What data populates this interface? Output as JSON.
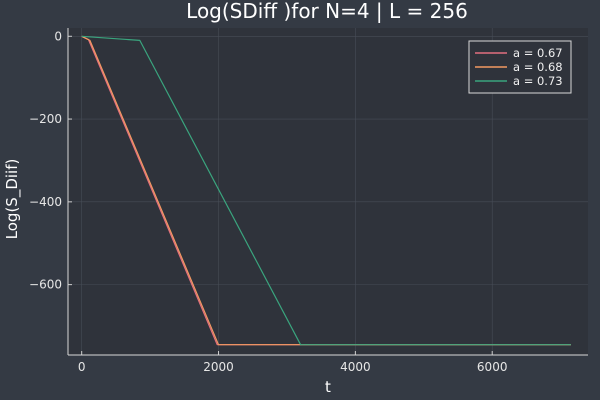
{
  "chart_data": {
    "type": "line",
    "title": "Log(SDiff )for N=4 | L = 256",
    "xlabel": "t",
    "ylabel": "Log(S_Diif)",
    "xlim": [
      -200,
      7400
    ],
    "ylim": [
      -770,
      20
    ],
    "xticks": [
      0,
      2000,
      4000,
      6000
    ],
    "yticks": [
      0,
      -200,
      -400,
      -600
    ],
    "xtick_labels": [
      "0",
      "2000",
      "4000",
      "6000"
    ],
    "ytick_labels": [
      "0",
      "−200",
      "−400",
      "−600"
    ],
    "grid": true,
    "legend_position": "top-right",
    "series": [
      {
        "name": "a = 0.67",
        "color": "#e26f7f",
        "points": [
          [
            0,
            0
          ],
          [
            100,
            -8
          ],
          [
            1980,
            -745
          ],
          [
            3200,
            -745
          ],
          [
            7150,
            -745
          ]
        ]
      },
      {
        "name": "a = 0.68",
        "color": "#f39a62",
        "points": [
          [
            0,
            0
          ],
          [
            120,
            -10
          ],
          [
            2000,
            -745
          ],
          [
            3200,
            -745
          ],
          [
            7150,
            -745
          ]
        ]
      },
      {
        "name": "a = 0.73",
        "color": "#3aa57e",
        "points": [
          [
            0,
            0
          ],
          [
            850,
            -10
          ],
          [
            3200,
            -745
          ],
          [
            7150,
            -745
          ]
        ]
      }
    ]
  }
}
